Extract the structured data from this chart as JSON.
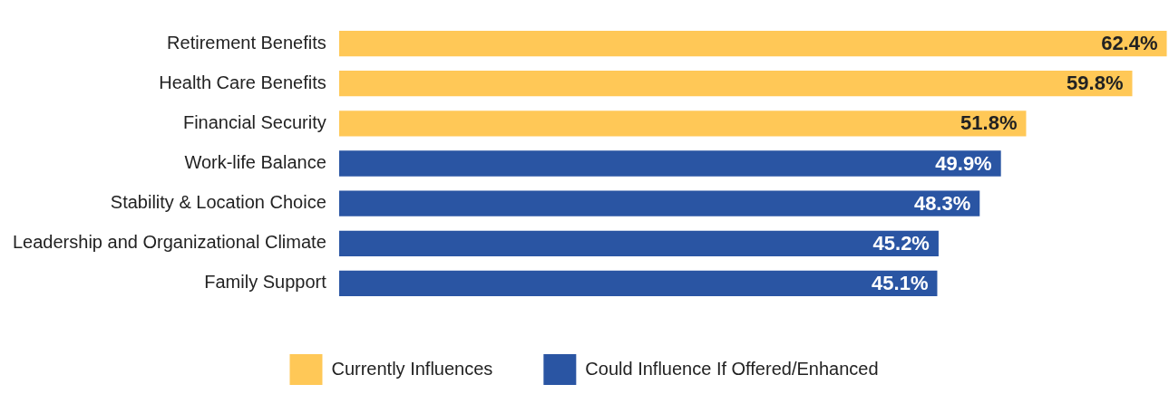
{
  "chart_data": {
    "type": "bar",
    "orientation": "horizontal",
    "stacked": true,
    "categories": [
      "Retirement Benefits",
      "Health Care Benefits",
      "Financial Security",
      "Work-life Balance",
      "Stability & Location Choice",
      "Leadership and Organizational Climate",
      "Family Support"
    ],
    "series": [
      {
        "name": "Currently Influences",
        "color": "#ffc857",
        "values": [
          62.4,
          59.8,
          51.8,
          null,
          null,
          null,
          null
        ],
        "value_labels": [
          "62.4%",
          "59.8%",
          "51.8%",
          null,
          null,
          null,
          null
        ]
      },
      {
        "name": "Could Influence If Offered/Enhanced",
        "color": "#2a55a3",
        "values": [
          null,
          null,
          null,
          49.9,
          48.3,
          45.2,
          45.1
        ],
        "value_labels": [
          null,
          null,
          null,
          "49.9%",
          "48.3%",
          "45.2%",
          "45.1%"
        ]
      }
    ],
    "xlim": [
      0,
      62.5
    ],
    "tick_labels": "y",
    "grid": false,
    "legend": "bottom"
  }
}
